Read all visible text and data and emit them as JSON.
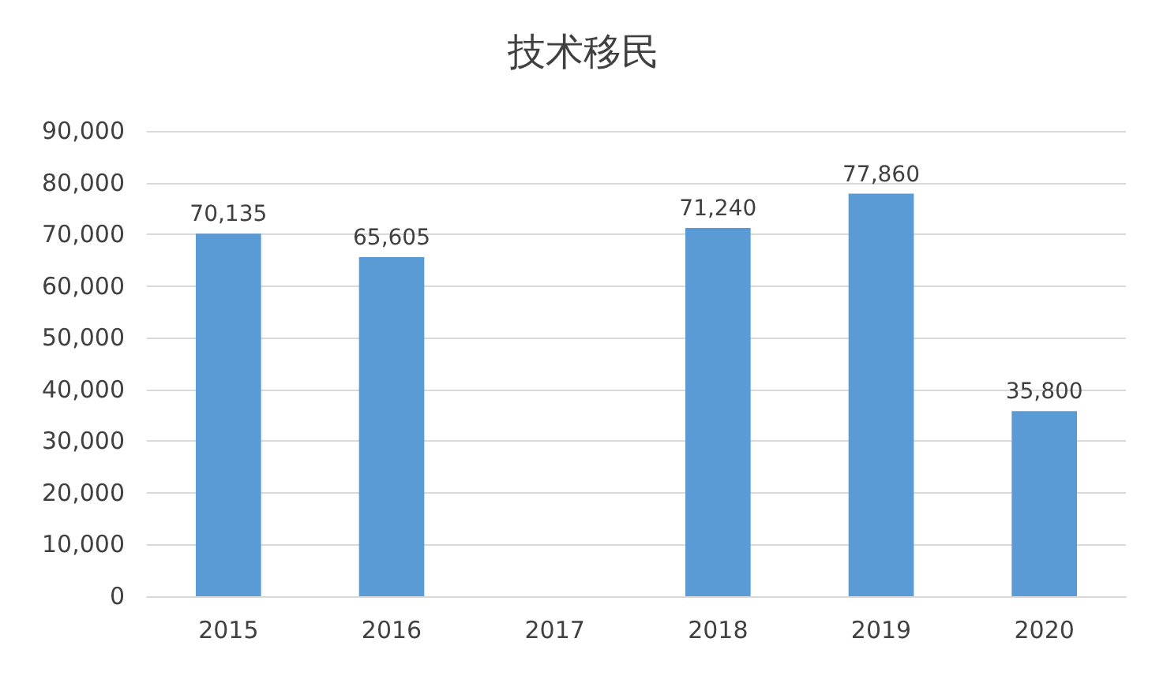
{
  "chart_data": {
    "type": "bar",
    "title": "技术移民",
    "categories": [
      "2015",
      "2016",
      "2017",
      "2018",
      "2019",
      "2020"
    ],
    "values": [
      70135,
      65605,
      null,
      71240,
      77860,
      35800
    ],
    "value_labels": [
      "70,135",
      "65,605",
      null,
      "71,240",
      "77,860",
      "35,800"
    ],
    "color": "#5b9bd5",
    "ylim": [
      0,
      90000
    ],
    "yticks": [
      {
        "value": 0,
        "label": "0"
      },
      {
        "value": 10000,
        "label": "10,000"
      },
      {
        "value": 20000,
        "label": "20,000"
      },
      {
        "value": 30000,
        "label": "30,000"
      },
      {
        "value": 40000,
        "label": "40,000"
      },
      {
        "value": 50000,
        "label": "50,000"
      },
      {
        "value": 60000,
        "label": "60,000"
      },
      {
        "value": 70000,
        "label": "70,000"
      },
      {
        "value": 80000,
        "label": "80,000"
      },
      {
        "value": 90000,
        "label": "90,000"
      }
    ],
    "grid": true
  }
}
